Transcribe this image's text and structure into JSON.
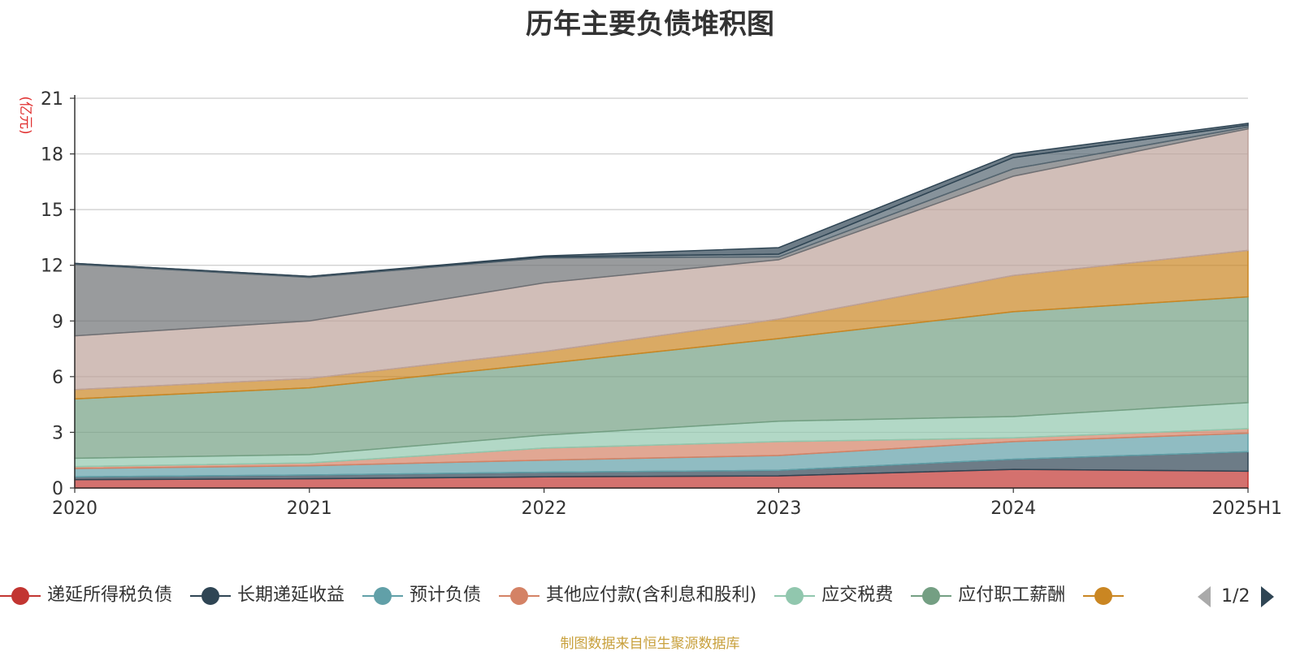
{
  "title": "历年主要负债堆积图",
  "source_note": "制图数据来自恒生聚源数据库",
  "legend_page": "1/2",
  "chart_data": {
    "type": "area",
    "stacked": true,
    "title": "历年主要负债堆积图",
    "ylabel": "(亿元)",
    "xlabel": "",
    "categories": [
      "2020",
      "2021",
      "2022",
      "2023",
      "2024",
      "2025H1"
    ],
    "ylim": [
      0,
      21
    ],
    "yticks": [
      0,
      3,
      6,
      9,
      12,
      15,
      18,
      21
    ],
    "grid": true,
    "legend_position": "bottom",
    "series": [
      {
        "name": "递延所得税负债",
        "color": "#c23531",
        "values": [
          0.45,
          0.5,
          0.6,
          0.65,
          1.0,
          0.9
        ]
      },
      {
        "name": "长期递延收益",
        "color": "#2f4554",
        "values": [
          0.15,
          0.2,
          0.25,
          0.3,
          0.55,
          1.05
        ]
      },
      {
        "name": "预计负债",
        "color": "#61a0a8",
        "values": [
          0.45,
          0.5,
          0.65,
          0.8,
          0.95,
          1.0
        ]
      },
      {
        "name": "其他应付款(含利息和股利)",
        "color": "#d48265",
        "values": [
          0.1,
          0.15,
          0.65,
          0.75,
          0.2,
          0.25
        ]
      },
      {
        "name": "应交税费",
        "color": "#91c7ae",
        "values": [
          0.45,
          0.45,
          0.7,
          1.1,
          1.15,
          1.4
        ]
      },
      {
        "name": "应付职工薪酬",
        "color": "#749f83",
        "values": [
          3.2,
          3.6,
          3.85,
          4.45,
          5.65,
          5.7
        ]
      },
      {
        "name": "",
        "color": "#ca8622",
        "values": [
          0.5,
          0.5,
          0.65,
          1.05,
          1.95,
          2.5
        ]
      },
      {
        "name": "",
        "color": "#bda29a",
        "values": [
          2.9,
          3.1,
          3.7,
          3.2,
          5.35,
          6.55
        ]
      },
      {
        "name": "",
        "color": "#6e7074",
        "values": [
          3.85,
          2.35,
          1.35,
          0.15,
          0.4,
          0.1
        ]
      },
      {
        "name": "",
        "color": "#546570",
        "values": [
          0.05,
          0.05,
          0.05,
          0.15,
          0.6,
          0.1
        ]
      },
      {
        "name": "",
        "color": "#2f4554",
        "values": [
          0.0,
          0.0,
          0.05,
          0.35,
          0.2,
          0.1
        ]
      }
    ]
  },
  "legend_visible": [
    {
      "name": "递延所得税负债",
      "color": "#c23531"
    },
    {
      "name": "长期递延收益",
      "color": "#2f4554"
    },
    {
      "name": "预计负债",
      "color": "#61a0a8"
    },
    {
      "name": "其他应付款(含利息和股利)",
      "color": "#d48265"
    },
    {
      "name": "应交税费",
      "color": "#91c7ae"
    },
    {
      "name": "应付职工薪酬",
      "color": "#749f83"
    },
    {
      "name": "",
      "color": "#ca8622"
    }
  ],
  "icons": {
    "prev": "triangle-left-icon",
    "next": "triangle-right-icon"
  }
}
